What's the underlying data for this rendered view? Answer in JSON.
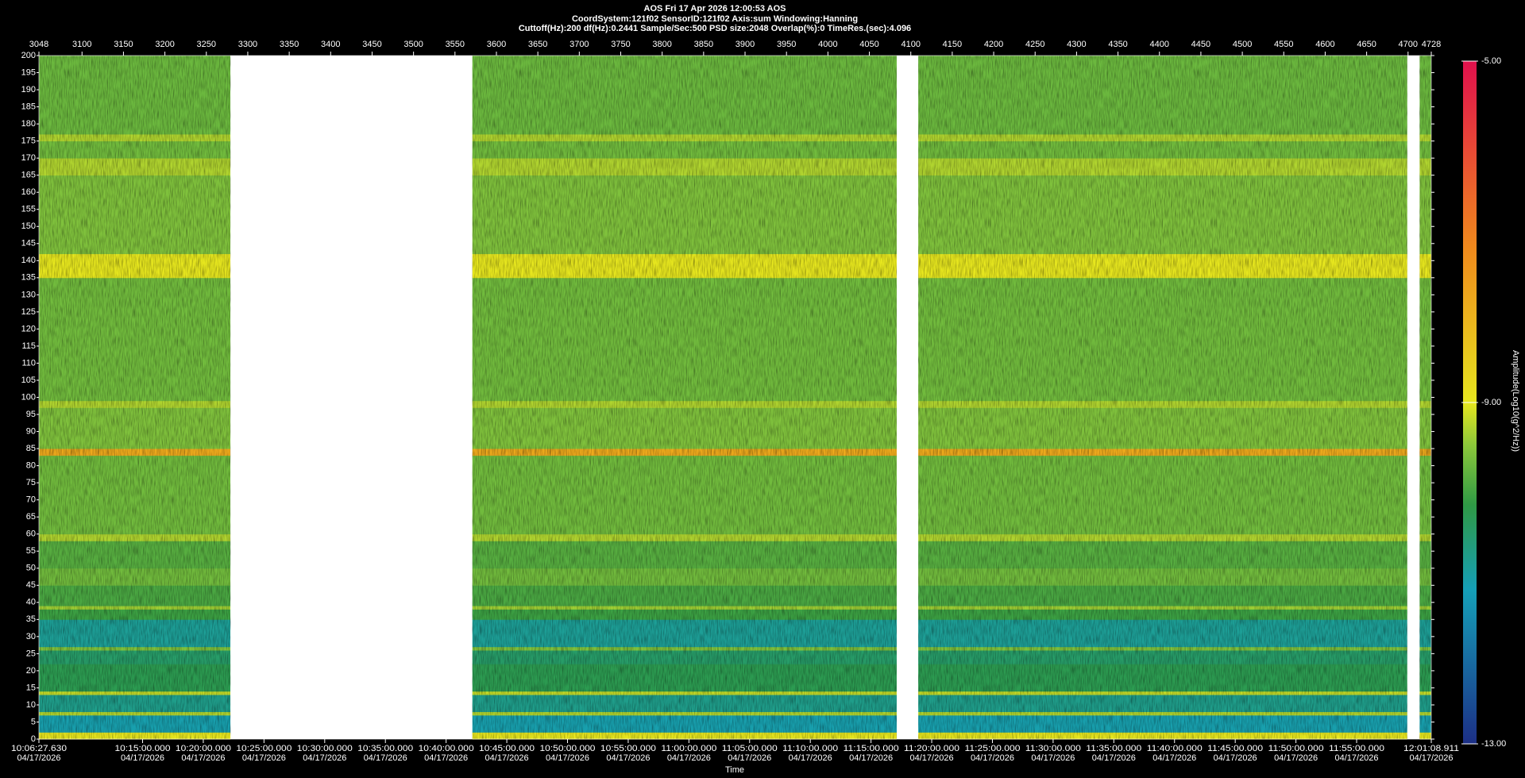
{
  "chart_data": {
    "type": "spectrogram",
    "title": "AOS  Fri 17 Apr 2026 12:00:53  AOS",
    "subtitle": "CoordSystem:121f02   SensorID:121f02   Axis:sum   Windowing:Hanning",
    "settings_line": "Cuttoff(Hz):200   df(Hz):0.2441   Sample/Sec:500   PSD size:2048   Overlap(%):0   TimeRes.(sec):4.096",
    "xlabel": "Time",
    "colorbar_label": "Amplitude(Log10(g^2/Hz))",
    "xlim": [
      3048,
      4728
    ],
    "xticks": [
      3048,
      3100,
      3150,
      3200,
      3250,
      3300,
      3350,
      3400,
      3450,
      3500,
      3550,
      3600,
      3650,
      3700,
      3750,
      3800,
      3850,
      3900,
      3950,
      4000,
      4050,
      4100,
      4150,
      4200,
      4250,
      4300,
      4350,
      4400,
      4450,
      4500,
      4550,
      4600,
      4650,
      4700,
      4728
    ],
    "x2lim": [
      36387.63,
      43268.911
    ],
    "x2ticks": [
      {
        "value": 36387.63,
        "label": "10:06:27.630"
      },
      {
        "value": 36900,
        "label": "10:15:00.000"
      },
      {
        "value": 37200,
        "label": "10:20:00.000"
      },
      {
        "value": 37500,
        "label": "10:25:00.000"
      },
      {
        "value": 37800,
        "label": "10:30:00.000"
      },
      {
        "value": 38100,
        "label": "10:35:00.000"
      },
      {
        "value": 38400,
        "label": "10:40:00.000"
      },
      {
        "value": 38700,
        "label": "10:45:00.000"
      },
      {
        "value": 39000,
        "label": "10:50:00.000"
      },
      {
        "value": 39300,
        "label": "10:55:00.000"
      },
      {
        "value": 39600,
        "label": "11:00:00.000"
      },
      {
        "value": 39900,
        "label": "11:05:00.000"
      },
      {
        "value": 40200,
        "label": "11:10:00.000"
      },
      {
        "value": 40500,
        "label": "11:15:00.000"
      },
      {
        "value": 40800,
        "label": "11:20:00.000"
      },
      {
        "value": 41100,
        "label": "11:25:00.000"
      },
      {
        "value": 41400,
        "label": "11:30:00.000"
      },
      {
        "value": 41700,
        "label": "11:35:00.000"
      },
      {
        "value": 42000,
        "label": "11:40:00.000"
      },
      {
        "value": 42300,
        "label": "11:45:00.000"
      },
      {
        "value": 42600,
        "label": "11:50:00.000"
      },
      {
        "value": 42900,
        "label": "11:55:00.000"
      },
      {
        "value": 43268.911,
        "label": "12:01:08.911"
      }
    ],
    "x2tick_dates": [
      "04/17/2026",
      "04/17/2026",
      "04/17/2026",
      "04/17/2026",
      "04/17/2026",
      "04/17/2026",
      "04/17/2026",
      "04/17/2026",
      "04/17/2026",
      "04/17/2026",
      "04/17/2026",
      "04/17/2026",
      "04/17/2026",
      "04/17/2026",
      "04/17/2026",
      "04/17/2026",
      "04/17/2026",
      "04/17/2026",
      "04/17/2026",
      "04/17/2026",
      "04/17/2026",
      "04/17/2026",
      "04/17/2026"
    ],
    "ylim": [
      0,
      200
    ],
    "yticks": [
      0,
      5,
      10,
      15,
      20,
      25,
      30,
      35,
      40,
      45,
      50,
      55,
      60,
      65,
      70,
      75,
      80,
      85,
      90,
      95,
      100,
      105,
      110,
      115,
      120,
      125,
      130,
      135,
      140,
      145,
      150,
      155,
      160,
      165,
      170,
      175,
      180,
      185,
      190,
      195,
      200
    ],
    "clim": [
      -13,
      -5
    ],
    "cticks": [
      {
        "value": -5,
        "label": "-5.00"
      },
      {
        "value": -9,
        "label": "-9.00"
      },
      {
        "value": -13,
        "label": "-13.00"
      }
    ],
    "colorscale": [
      [
        -13,
        "#1c2f86"
      ],
      [
        -11.2,
        "#159fb8"
      ],
      [
        -10.2,
        "#2f9a45"
      ],
      [
        -9.5,
        "#8cc83a"
      ],
      [
        -9,
        "#e6e61e"
      ],
      [
        -7.2,
        "#f08a1c"
      ],
      [
        -5,
        "#e0104c"
      ]
    ],
    "segments": [
      [
        3048,
        3279
      ],
      [
        3571,
        4083
      ],
      [
        4109,
        4699
      ],
      [
        4714,
        4728
      ]
    ],
    "bands": {
      "ranges": [
        [
          0,
          2
        ],
        [
          2,
          7
        ],
        [
          7,
          8
        ],
        [
          8,
          13
        ],
        [
          13,
          14
        ],
        [
          14,
          22
        ],
        [
          22,
          26
        ],
        [
          26,
          27
        ],
        [
          27,
          35
        ],
        [
          35,
          38
        ],
        [
          38,
          39
        ],
        [
          39,
          45
        ],
        [
          45,
          50
        ],
        [
          50,
          58
        ],
        [
          58,
          60
        ],
        [
          60,
          83
        ],
        [
          83,
          85
        ],
        [
          85,
          97
        ],
        [
          97,
          99
        ],
        [
          99,
          135
        ],
        [
          135,
          142
        ],
        [
          142,
          165
        ],
        [
          165,
          170
        ],
        [
          170,
          175
        ],
        [
          175,
          177
        ],
        [
          177,
          200
        ]
      ],
      "values": [
        -9.0,
        -11.1,
        -9.3,
        -10.8,
        -9.2,
        -10.3,
        -10.5,
        -9.6,
        -10.9,
        -10.1,
        -9.4,
        -10.0,
        -9.7,
        -9.9,
        -9.3,
        -9.7,
        -7.8,
        -9.6,
        -9.3,
        -9.7,
        -9.0,
        -9.6,
        -9.3,
        -9.7,
        -9.3,
        -9.75
      ]
    }
  }
}
